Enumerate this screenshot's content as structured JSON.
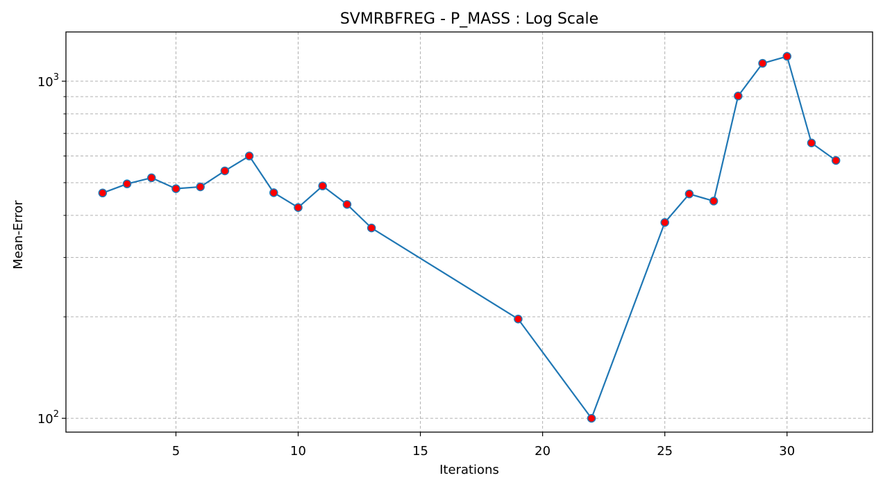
{
  "chart_data": {
    "type": "line",
    "title": "SVMRBFREG - P_MASS : Log Scale",
    "xlabel": "Iterations",
    "ylabel": "Mean-Error",
    "yscale": "log",
    "grid": true,
    "xlim": [
      0.5,
      33.5
    ],
    "ylim": [
      91,
      1400
    ],
    "x_ticks": [
      5,
      10,
      15,
      20,
      25,
      30
    ],
    "y_major_ticks": [
      {
        "value": 100,
        "label_base": "10",
        "label_exp": "2"
      },
      {
        "value": 1000,
        "label_base": "10",
        "label_exp": "3"
      }
    ],
    "y_minor_ticks": [
      200,
      300,
      400,
      500,
      600,
      700,
      800,
      900
    ],
    "colors": {
      "line": "#1f77b4",
      "marker_fill": "#ff0000",
      "marker_edge": "#1f77b4",
      "grid": "#b0b0b0"
    },
    "series": [
      {
        "x": [
          2,
          3,
          4,
          5,
          6,
          7,
          8,
          9,
          10,
          11,
          12,
          13,
          19,
          22,
          25,
          26,
          27,
          28,
          29,
          30,
          31,
          32
        ],
        "y": [
          466,
          496,
          517,
          480,
          486,
          542,
          600,
          467,
          422,
          489,
          431,
          367,
          197,
          100,
          381,
          463,
          441,
          904,
          1130,
          1185,
          656,
          582
        ]
      }
    ]
  }
}
